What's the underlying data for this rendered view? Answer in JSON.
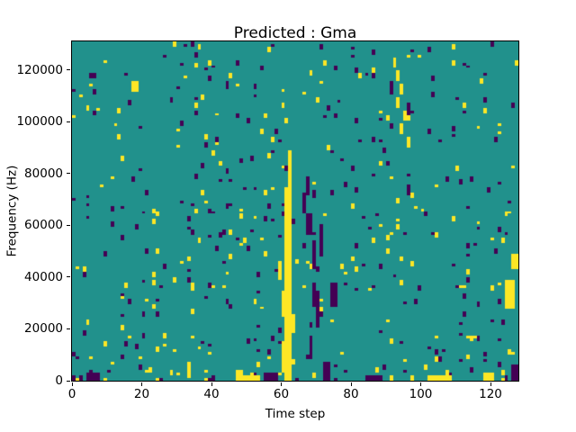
{
  "title": "Predicted : Gma",
  "axes": {
    "x": {
      "label": "Time step",
      "range": [
        0,
        128
      ],
      "ticks": [
        0,
        20,
        40,
        60,
        80,
        100,
        120
      ]
    },
    "y": {
      "label": "Frequency (Hz)",
      "range": [
        0,
        131072
      ],
      "ticks": [
        0,
        20000,
        40000,
        60000,
        80000,
        100000,
        120000
      ]
    }
  },
  "chart_data": {
    "type": "heatmap",
    "title": "Predicted : Gma",
    "xlabel": "Time step",
    "ylabel": "Frequency (Hz)",
    "x_range": [
      0,
      128
    ],
    "y_range": [
      0,
      131072
    ],
    "grid": {
      "cols": 128,
      "rows": 128
    },
    "colormap": {
      "name": "viridis-3-class",
      "background_mid": "#21918c",
      "low_purple": "#440154",
      "high_yellow": "#fde725"
    },
    "legend": "none",
    "description": "Mostly mid-value (teal) field with sparse single-cell purple and yellow detections; a strong yellow vertical band near time step 60-63 spanning low frequencies up to ~88000 Hz, a purple cluster near time 66-75 between 20000-80000 Hz, a yellow patch at time 124-127 near 28000-40000 Hz, and a diagonal yellow streak near time 91-96 at 90000-125000 Hz.",
    "scatter": {
      "seed": 42,
      "purple_density": 0.016,
      "yellow_density": 0.013,
      "max_run": 2,
      "bottom_boost_rows": 4,
      "bottom_boost_mult": 3
    },
    "features_format": "[color(y|p), col_start, col_end, row_start, row_end] rows counted from bottom, 1 row = 1024 Hz",
    "features": [
      [
        "y",
        61,
        62,
        0,
        72
      ],
      [
        "y",
        62,
        62,
        73,
        86
      ],
      [
        "y",
        60,
        60,
        3,
        14
      ],
      [
        "y",
        60,
        60,
        24,
        33
      ],
      [
        "y",
        63,
        63,
        18,
        24
      ],
      [
        "y",
        59,
        59,
        38,
        44
      ],
      [
        "p",
        66,
        66,
        63,
        70
      ],
      [
        "p",
        67,
        68,
        55,
        62
      ],
      [
        "p",
        69,
        69,
        42,
        52
      ],
      [
        "p",
        69,
        69,
        28,
        36
      ],
      [
        "p",
        70,
        70,
        20,
        33
      ],
      [
        "p",
        71,
        71,
        47,
        58
      ],
      [
        "p",
        74,
        75,
        28,
        36
      ],
      [
        "p",
        68,
        68,
        8,
        16
      ],
      [
        "p",
        72,
        73,
        0,
        6
      ],
      [
        "p",
        67,
        67,
        70,
        76
      ],
      [
        "y",
        124,
        126,
        27,
        37
      ],
      [
        "y",
        126,
        127,
        42,
        47
      ],
      [
        "p",
        126,
        127,
        0,
        5
      ],
      [
        "y",
        118,
        120,
        0,
        2
      ],
      [
        "y",
        92,
        92,
        118,
        121
      ],
      [
        "y",
        93,
        93,
        113,
        116
      ],
      [
        "y",
        94,
        94,
        108,
        111
      ],
      [
        "y",
        93,
        93,
        103,
        106
      ],
      [
        "y",
        95,
        95,
        98,
        101
      ],
      [
        "y",
        94,
        94,
        93,
        96
      ],
      [
        "y",
        96,
        96,
        88,
        91
      ],
      [
        "p",
        91,
        91,
        108,
        112
      ],
      [
        "p",
        96,
        96,
        100,
        104
      ],
      [
        "y",
        47,
        53,
        0,
        1
      ],
      [
        "p",
        55,
        58,
        0,
        2
      ],
      [
        "y",
        102,
        108,
        0,
        1
      ],
      [
        "p",
        4,
        7,
        0,
        2
      ],
      [
        "p",
        84,
        88,
        0,
        1
      ],
      [
        "y",
        33,
        33,
        1,
        6
      ],
      [
        "y",
        17,
        18,
        109,
        112
      ]
    ]
  }
}
